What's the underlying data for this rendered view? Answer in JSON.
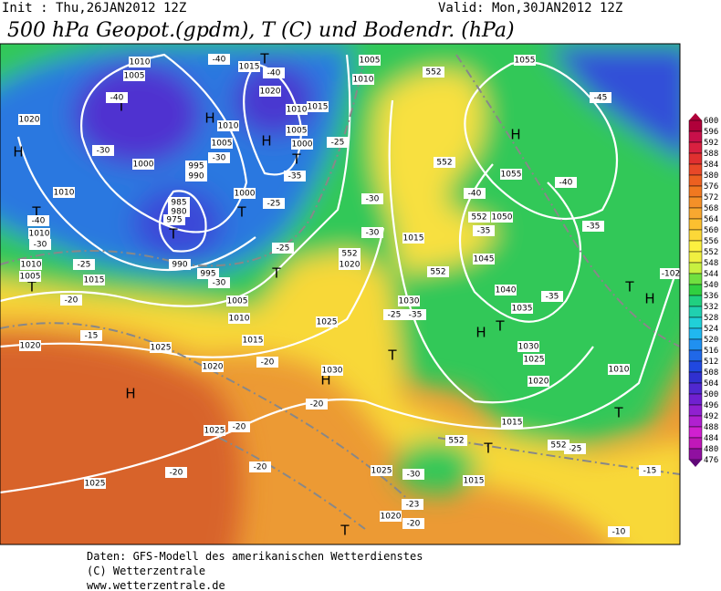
{
  "header": {
    "init": "Init : Thu,26JAN2012 12Z",
    "valid": "Valid: Mon,30JAN2012 12Z",
    "title": "500 hPa Geopot.(gpdm), T (C) und Bodendr. (hPa)"
  },
  "colorbar": {
    "levels": [
      600,
      596,
      592,
      588,
      584,
      580,
      576,
      572,
      568,
      564,
      560,
      556,
      552,
      548,
      544,
      540,
      536,
      532,
      528,
      524,
      520,
      516,
      512,
      508,
      504,
      500,
      496,
      492,
      488,
      484,
      480,
      476
    ],
    "colors": [
      "#b0003a",
      "#c8104a",
      "#d82040",
      "#e03030",
      "#e84828",
      "#ec6020",
      "#f07820",
      "#f49028",
      "#f8a830",
      "#fcc030",
      "#fcd838",
      "#fcf040",
      "#f0f040",
      "#c8f040",
      "#70e040",
      "#30d040",
      "#20d080",
      "#20d0b0",
      "#20d0d8",
      "#20b8f0",
      "#2090f0",
      "#2068e8",
      "#2048e0",
      "#3030d0",
      "#5028d0",
      "#7020d0",
      "#9020d0",
      "#b020d0",
      "#d020d0",
      "#c018b8",
      "#9010a0",
      "#600878"
    ]
  },
  "map": {
    "labels": [
      "H",
      "H",
      "H",
      "H",
      "H",
      "H",
      "H",
      "H",
      "T",
      "T",
      "T",
      "T",
      "T",
      "T",
      "T",
      "T",
      "T",
      "T",
      "T",
      "T",
      "T",
      "T",
      "1010",
      "1005",
      "1015",
      "1020",
      "1020",
      "1010",
      "1005",
      "995",
      "990",
      "1000",
      "1010",
      "1015",
      "1005",
      "1000",
      "1000",
      "985",
      "980",
      "975",
      "990",
      "995",
      "1010",
      "1010",
      "1010",
      "1005",
      "1015",
      "1005",
      "1010",
      "1025",
      "1015",
      "1020",
      "1025",
      "1020",
      "1030",
      "1025",
      "1025",
      "1025",
      "1020",
      "1015",
      "1015",
      "1020",
      "1025",
      "1030",
      "1035",
      "1040",
      "1045",
      "1050",
      "1055",
      "1055",
      "1015",
      "1020",
      "1030",
      "1005",
      "1010",
      "1010",
      "-40",
      "-40",
      "-40",
      "-30",
      "-30",
      "-25",
      "-35",
      "-30",
      "-25",
      "-25",
      "-30",
      "-40",
      "-35",
      "-40",
      "-45",
      "-35",
      "-35",
      "-25",
      "-35",
      "-30",
      "-25",
      "-20",
      "-15",
      "-20",
      "-20",
      "-20",
      "-20",
      "-20",
      "-30",
      "-23",
      "-20",
      "-25",
      "-15",
      "-10",
      "-40",
      "-30",
      "552",
      "552",
      "552",
      "552",
      "552",
      "552",
      "552",
      "-102"
    ]
  },
  "footer": [
    "Daten: GFS-Modell des amerikanischen Wetterdienstes",
    "(C) Wetterzentrale",
    "www.wetterzentrale.de"
  ]
}
